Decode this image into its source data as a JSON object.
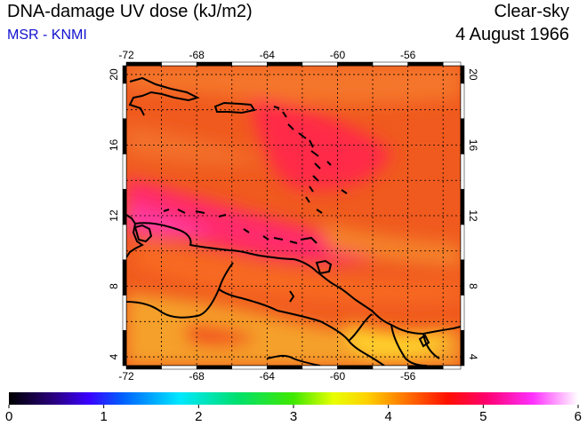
{
  "header": {
    "title": "DNA-damage UV dose (kJ/m2)",
    "source": "MSR - KNMI",
    "condition": "Clear-sky",
    "date": "4 August 1966"
  },
  "map": {
    "lon_range": [
      -72,
      -53
    ],
    "lat_range": [
      3.5,
      20.5
    ],
    "lon_ticks": [
      "-72",
      "-68",
      "-64",
      "-60",
      "-56"
    ],
    "lat_ticks": [
      "4",
      "8",
      "12",
      "16",
      "20"
    ],
    "grid": true,
    "gridline_style": "dotted"
  },
  "colorbar": {
    "range": [
      0,
      6
    ],
    "tick_labels": [
      "0",
      "1",
      "2",
      "3",
      "4",
      "5",
      "6"
    ],
    "colors": [
      "#000000",
      "#3a00c8",
      "#0050ff",
      "#00e0ff",
      "#00e060",
      "#70f000",
      "#ffff00",
      "#ffa000",
      "#ff2000",
      "#ff0080",
      "#ff40ff",
      "#ffffff"
    ]
  }
}
